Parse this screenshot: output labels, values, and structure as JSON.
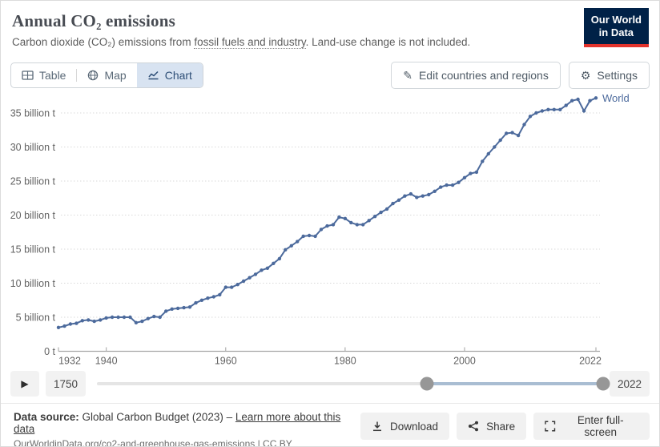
{
  "header": {
    "title": "Annual CO₂ emissions",
    "subtitle_prefix": "Carbon dioxide (CO₂) emissions from ",
    "subtitle_link": "fossil fuels and industry",
    "subtitle_suffix": ". Land-use change is not included.",
    "logo_line1": "Our World",
    "logo_line2": "in Data"
  },
  "tabs": [
    {
      "label": "Table",
      "active": false
    },
    {
      "label": "Map",
      "active": false
    },
    {
      "label": "Chart",
      "active": true
    }
  ],
  "controls": {
    "edit_button": "Edit countries and regions",
    "edit_icon": "✎",
    "settings_button": "Settings",
    "settings_icon": "⚙"
  },
  "chart_data": {
    "type": "line",
    "title": "Annual CO₂ emissions",
    "ylabel": "",
    "xlabel": "",
    "unit": "billion t",
    "grid": "dotted-horizontal",
    "ylim": [
      0,
      37.5
    ],
    "xlim": [
      1932,
      2022
    ],
    "yticks": [
      {
        "v": 0,
        "label": "0 t"
      },
      {
        "v": 5,
        "label": "5 billion t"
      },
      {
        "v": 10,
        "label": "10 billion t"
      },
      {
        "v": 15,
        "label": "15 billion t"
      },
      {
        "v": 20,
        "label": "20 billion t"
      },
      {
        "v": 25,
        "label": "25 billion t"
      },
      {
        "v": 30,
        "label": "30 billion t"
      },
      {
        "v": 35,
        "label": "35 billion t"
      }
    ],
    "xticks": [
      {
        "year": 1932,
        "label": "1932"
      },
      {
        "year": 1940,
        "label": "1940"
      },
      {
        "year": 1960,
        "label": "1960"
      },
      {
        "year": 1980,
        "label": "1980"
      },
      {
        "year": 2000,
        "label": "2000"
      },
      {
        "year": 2022,
        "label": "2022"
      }
    ],
    "x": [
      1932,
      1933,
      1934,
      1935,
      1936,
      1937,
      1938,
      1939,
      1940,
      1941,
      1942,
      1943,
      1944,
      1945,
      1946,
      1947,
      1948,
      1949,
      1950,
      1951,
      1952,
      1953,
      1954,
      1955,
      1956,
      1957,
      1958,
      1959,
      1960,
      1961,
      1962,
      1963,
      1964,
      1965,
      1966,
      1967,
      1968,
      1969,
      1970,
      1971,
      1972,
      1973,
      1974,
      1975,
      1976,
      1977,
      1978,
      1979,
      1980,
      1981,
      1982,
      1983,
      1984,
      1985,
      1986,
      1987,
      1988,
      1989,
      1990,
      1991,
      1992,
      1993,
      1994,
      1995,
      1996,
      1997,
      1998,
      1999,
      2000,
      2001,
      2002,
      2003,
      2004,
      2005,
      2006,
      2007,
      2008,
      2009,
      2010,
      2011,
      2012,
      2013,
      2014,
      2015,
      2016,
      2017,
      2018,
      2019,
      2020,
      2021,
      2022
    ],
    "series": [
      {
        "name": "World",
        "color": "#4C6A9C",
        "values": [
          3.5,
          3.7,
          4.0,
          4.1,
          4.5,
          4.6,
          4.4,
          4.6,
          4.9,
          5.0,
          5.0,
          5.0,
          5.0,
          4.2,
          4.4,
          4.8,
          5.1,
          5.0,
          5.9,
          6.2,
          6.3,
          6.4,
          6.5,
          7.1,
          7.5,
          7.8,
          8.0,
          8.3,
          9.4,
          9.4,
          9.8,
          10.3,
          10.8,
          11.3,
          11.9,
          12.2,
          12.9,
          13.6,
          14.9,
          15.5,
          16.1,
          16.9,
          17.0,
          16.9,
          17.9,
          18.4,
          18.6,
          19.7,
          19.5,
          18.9,
          18.6,
          18.6,
          19.2,
          19.8,
          20.4,
          20.9,
          21.7,
          22.2,
          22.8,
          23.1,
          22.6,
          22.8,
          23.0,
          23.5,
          24.1,
          24.4,
          24.4,
          24.8,
          25.5,
          26.1,
          26.3,
          27.9,
          29.0,
          30.0,
          31.0,
          32.0,
          32.1,
          31.7,
          33.3,
          34.5,
          35.0,
          35.3,
          35.5,
          35.5,
          35.5,
          36.1,
          36.8,
          37.0,
          35.3,
          36.8,
          37.2
        ]
      }
    ],
    "legend_position": "end-of-line"
  },
  "timeline": {
    "play_icon": "▶",
    "start_label": "1750",
    "end_label": "2022",
    "selected_start_pct": 65.5,
    "selected_end_pct": 100
  },
  "footer": {
    "source_label": "Data source:",
    "source_text": " Global Carbon Budget (2023) – ",
    "source_link": "Learn more about this data",
    "citation": "OurWorldinData.org/co2-and-greenhouse-gas-emissions | CC BY",
    "download_button": "Download",
    "share_button": "Share",
    "fullscreen_button": "Enter full-screen"
  },
  "colors": {
    "accent": "#4C6A9C",
    "logo_bg": "#002147",
    "logo_underline": "#e2332c",
    "tab_active_bg": "#d8e3f1",
    "tab_active_text": "#2e4f77"
  }
}
